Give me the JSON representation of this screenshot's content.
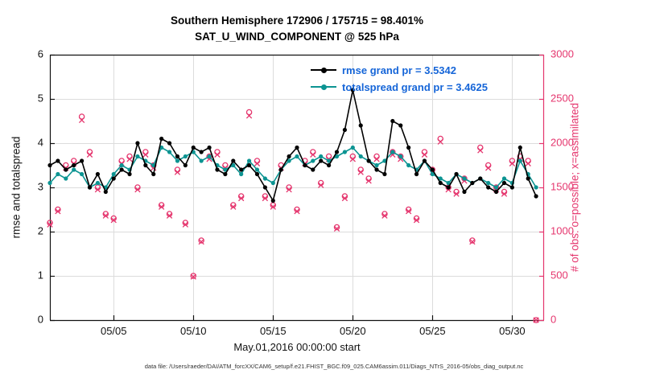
{
  "caption": "data file: /Users/raeder/DAI/ATM_forcXX/CAM6_setup/f.e21.FHIST_BGC.f09_025.CAM6assim.011/Diags_NTrS_2016-05/obs_diag_output.nc",
  "colors": {
    "pink": "#e5366e",
    "teal": "#0c9492",
    "black": "#000000",
    "legend_text": "#1565d8",
    "grid": "#dcdcdc",
    "axis": "#111111"
  },
  "chart_data": {
    "type": "line",
    "title": "Southern Hemisphere 172906 / 175715 = 98.401%",
    "subtitle": "SAT_U_WIND_COMPONENT @ 525 hPa",
    "xlabel": "May.01,2016 00:00:00 start",
    "ylabel_left": "rmse and totalspread",
    "ylabel_right": "# of obs: o=possible; x=assimilated",
    "xlim": [
      1,
      32
    ],
    "ylim_left": [
      0,
      6
    ],
    "ylim_right": [
      0,
      3000
    ],
    "grid": true,
    "xticks": {
      "values": [
        5,
        10,
        15,
        20,
        25,
        30
      ],
      "labels": [
        "05/05",
        "05/10",
        "05/15",
        "05/20",
        "05/25",
        "05/30"
      ]
    },
    "yticks_left": [
      0,
      1,
      2,
      3,
      4,
      5,
      6
    ],
    "yticks_right": [
      0,
      500,
      1000,
      1500,
      2000,
      2500,
      3000
    ],
    "legend": {
      "position": "top-center-inside",
      "entries": [
        {
          "label": "rmse grand pr = 3.5342",
          "series": "rmse",
          "color": "#000000"
        },
        {
          "label": "totalspread grand pr = 3.4625",
          "series": "totalspread",
          "color": "#0c9492"
        }
      ]
    },
    "x": [
      1,
      1.5,
      2,
      2.5,
      3,
      3.5,
      4,
      4.5,
      5,
      5.5,
      6,
      6.5,
      7,
      7.5,
      8,
      8.5,
      9,
      9.5,
      10,
      10.5,
      11,
      11.5,
      12,
      12.5,
      13,
      13.5,
      14,
      14.5,
      15,
      15.5,
      16,
      16.5,
      17,
      17.5,
      18,
      18.5,
      19,
      19.5,
      20,
      20.5,
      21,
      21.5,
      22,
      22.5,
      23,
      23.5,
      24,
      24.5,
      25,
      25.5,
      26,
      26.5,
      27,
      27.5,
      28,
      28.5,
      29,
      29.5,
      30,
      30.5,
      31,
      31.5
    ],
    "series": [
      {
        "name": "rmse",
        "axis": "left",
        "marker": "filled-circle",
        "color": "#000000",
        "values": [
          3.5,
          3.6,
          3.4,
          3.5,
          3.6,
          3.0,
          3.3,
          2.9,
          3.2,
          3.4,
          3.3,
          4.0,
          3.5,
          3.3,
          4.1,
          4.0,
          3.7,
          3.5,
          3.9,
          3.8,
          3.9,
          3.4,
          3.3,
          3.6,
          3.4,
          3.5,
          3.3,
          3.0,
          2.7,
          3.4,
          3.7,
          3.9,
          3.5,
          3.4,
          3.6,
          3.5,
          3.8,
          4.3,
          5.2,
          4.4,
          3.6,
          3.4,
          3.3,
          4.5,
          4.4,
          3.9,
          3.3,
          3.6,
          3.4,
          3.1,
          3.0,
          3.3,
          2.9,
          3.1,
          3.2,
          3.0,
          2.9,
          3.1,
          3.0,
          3.9,
          3.2,
          2.8
        ]
      },
      {
        "name": "totalspread",
        "axis": "left",
        "marker": "filled-circle",
        "color": "#0c9492",
        "values": [
          3.1,
          3.3,
          3.2,
          3.4,
          3.3,
          3.0,
          3.1,
          3.0,
          3.3,
          3.5,
          3.4,
          3.7,
          3.6,
          3.5,
          3.9,
          3.8,
          3.6,
          3.7,
          3.8,
          3.6,
          3.7,
          3.5,
          3.4,
          3.5,
          3.3,
          3.6,
          3.4,
          3.2,
          3.1,
          3.4,
          3.6,
          3.7,
          3.5,
          3.6,
          3.7,
          3.6,
          3.7,
          3.8,
          3.9,
          3.7,
          3.6,
          3.5,
          3.6,
          3.8,
          3.7,
          3.5,
          3.4,
          3.6,
          3.3,
          3.2,
          3.1,
          3.3,
          3.2,
          3.1,
          3.2,
          3.1,
          3.0,
          3.2,
          3.1,
          3.6,
          3.3,
          3.0
        ]
      },
      {
        "name": "possible_obs",
        "axis": "right",
        "marker": "circle",
        "color": "#e5366e",
        "values": [
          1100,
          1250,
          1750,
          1800,
          2300,
          1900,
          1500,
          1200,
          1150,
          1800,
          1850,
          1500,
          1900,
          1750,
          1300,
          1200,
          1700,
          1100,
          500,
          900,
          1850,
          1900,
          1750,
          1300,
          1400,
          2350,
          1800,
          1400,
          1300,
          1750,
          1500,
          1250,
          1800,
          1900,
          1550,
          1850,
          1050,
          1400,
          1850,
          1700,
          1600,
          1850,
          1200,
          1900,
          1850,
          1250,
          1150,
          1900,
          1700,
          2050,
          1500,
          1450,
          1600,
          900,
          1950,
          1750,
          1500,
          1450,
          1800,
          1850,
          1800,
          0
        ]
      },
      {
        "name": "assimilated_obs",
        "axis": "right",
        "marker": "cross",
        "color": "#e5366e",
        "values": [
          1080,
          1230,
          1720,
          1770,
          2260,
          1870,
          1475,
          1180,
          1130,
          1770,
          1820,
          1475,
          1870,
          1720,
          1280,
          1180,
          1672,
          1080,
          490,
          885,
          1820,
          1870,
          1720,
          1280,
          1377,
          2310,
          1770,
          1377,
          1280,
          1720,
          1475,
          1230,
          1770,
          1870,
          1525,
          1820,
          1033,
          1377,
          1820,
          1672,
          1574,
          1820,
          1180,
          1870,
          1820,
          1230,
          1130,
          1870,
          1672,
          2016,
          1475,
          1426,
          1574,
          885,
          1918,
          1720,
          1475,
          1426,
          1770,
          1820,
          1770,
          0
        ]
      }
    ]
  }
}
